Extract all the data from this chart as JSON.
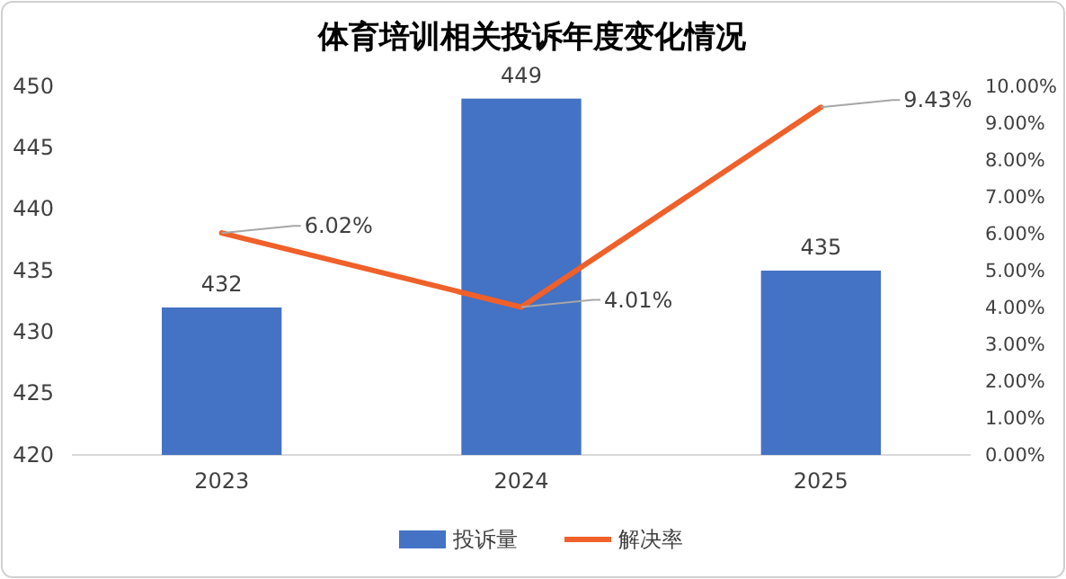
{
  "chart_data": {
    "type": "bar",
    "title": "体育培训相关投诉年度变化情况",
    "categories": [
      "2023",
      "2024",
      "2025"
    ],
    "series": [
      {
        "name": "投诉量",
        "color": "#4472c4",
        "values": [
          432,
          449,
          435
        ],
        "value_labels": [
          "432",
          "449",
          "435"
        ]
      },
      {
        "name": "解决率",
        "type": "line",
        "axis": "y2",
        "color": "#f0602a",
        "values": [
          6.02,
          4.01,
          9.43
        ],
        "value_labels": [
          "6.02%",
          "4.01%",
          "9.43%"
        ]
      }
    ],
    "ylim": [
      420,
      450
    ],
    "yticks": [
      420,
      425,
      430,
      435,
      440,
      445,
      450
    ],
    "y2lim": [
      0,
      10
    ],
    "y2ticks": [
      {
        "value": 0,
        "label": "0.00%"
      },
      {
        "value": 1,
        "label": "1.00%"
      },
      {
        "value": 2,
        "label": "2.00%"
      },
      {
        "value": 3,
        "label": "3.00%"
      },
      {
        "value": 4,
        "label": "4.00%"
      },
      {
        "value": 5,
        "label": "5.00%"
      },
      {
        "value": 6,
        "label": "6.00%"
      },
      {
        "value": 7,
        "label": "7.00%"
      },
      {
        "value": 8,
        "label": "8.00%"
      },
      {
        "value": 9,
        "label": "9.00%"
      },
      {
        "value": 10,
        "label": "10.00%"
      }
    ],
    "legend": "bottom",
    "marker": "none",
    "line_style": "solid"
  }
}
